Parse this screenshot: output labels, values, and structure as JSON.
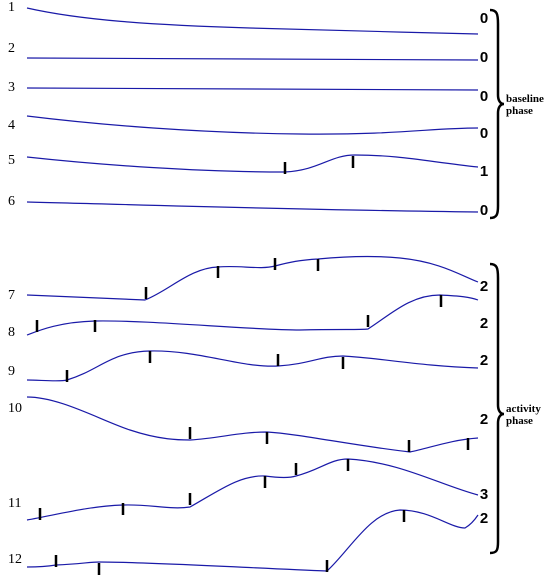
{
  "rows": [
    {
      "label": "1",
      "count": 0
    },
    {
      "label": "2",
      "count": 0
    },
    {
      "label": "3",
      "count": 0
    },
    {
      "label": "4",
      "count": 0
    },
    {
      "label": "5",
      "count": 1
    },
    {
      "label": "6",
      "count": 0
    },
    {
      "label": "7",
      "count": 2
    },
    {
      "label": "8",
      "count": 2
    },
    {
      "label": "9",
      "count": 2
    },
    {
      "label": "10",
      "count": 2
    },
    {
      "label": "11",
      "count": 3
    },
    {
      "label": "12",
      "count": 2
    }
  ],
  "phases": [
    {
      "label": [
        "baseline",
        "phase"
      ]
    },
    {
      "label": [
        "activity",
        "phase"
      ]
    }
  ]
}
